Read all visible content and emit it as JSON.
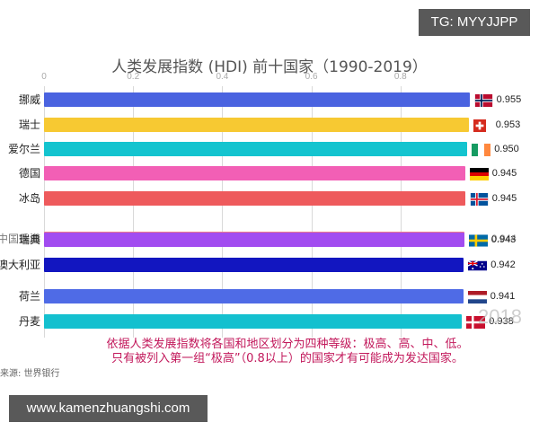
{
  "watermarks": {
    "top": "TG: MYYJJPP",
    "bottom": "www.kamenzhuangshi.com"
  },
  "chart_data": {
    "type": "bar",
    "orientation": "horizontal",
    "title": "人类发展指数 (HDI) 前十国家（1990-2019）",
    "xlabel": "",
    "ylabel": "",
    "xlim": [
      0,
      1
    ],
    "x_ticks": [
      "0",
      "0.2",
      "0.4",
      "0.6",
      "0.8"
    ],
    "grid": true,
    "current_year": "2018",
    "categories": [
      "挪威",
      "瑞士",
      "爱尔兰",
      "德国",
      "冰岛",
      "中国香港",
      "瑞典",
      "澳大利亚",
      "荷兰",
      "丹麦"
    ],
    "values": [
      0.955,
      0.953,
      0.95,
      0.945,
      0.945,
      0.944,
      0.943,
      0.942,
      0.941,
      0.938
    ],
    "value_labels": [
      "0.955",
      "0.953",
      "0.950",
      "0.945",
      "0.945",
      "0.944",
      "0.943",
      "0.942",
      "0.941",
      "0.938"
    ],
    "colors": [
      "#4a63e0",
      "#f7c932",
      "#14c4cf",
      "#f25fb5",
      "#ee5a5c",
      "#f07a8a",
      "#a24cf0",
      "#1216c0",
      "#4f6be6",
      "#14c0cf"
    ],
    "source": "来源: 世界银行",
    "annotation": [
      "依据人类发展指数将各国和地区划分为四种等级：极高、高、中、低。",
      "只有被列入第一组“极高”（0.8以上）的国家才有可能成为发达国家。"
    ]
  }
}
